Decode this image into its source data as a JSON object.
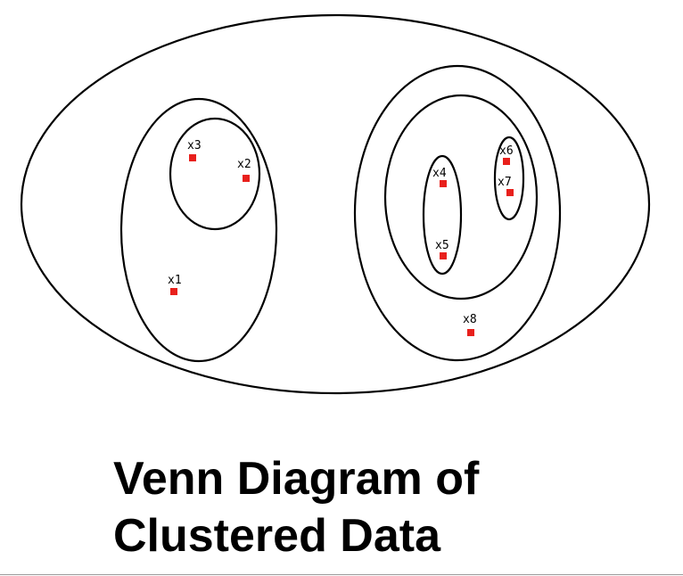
{
  "title": {
    "line1": "Venn Diagram of",
    "line2": "Clustered Data"
  },
  "colors": {
    "outline": "#000000",
    "point": "#e8201c",
    "text": "#000000"
  },
  "clusters": [
    {
      "id": "all",
      "contains": [
        "left-group",
        "right-group"
      ]
    },
    {
      "id": "left-group",
      "contains": [
        "x1",
        "group-x2-x3"
      ]
    },
    {
      "id": "group-x2-x3",
      "contains": [
        "x2",
        "x3"
      ]
    },
    {
      "id": "right-group",
      "contains": [
        "x8",
        "inner-right-group"
      ]
    },
    {
      "id": "inner-right-group",
      "contains": [
        "group-x4-x5",
        "group-x6-x7"
      ]
    },
    {
      "id": "group-x4-x5",
      "contains": [
        "x4",
        "x5"
      ]
    },
    {
      "id": "group-x6-x7",
      "contains": [
        "x6",
        "x7"
      ]
    }
  ],
  "points": [
    {
      "label": "x1"
    },
    {
      "label": "x2"
    },
    {
      "label": "x3"
    },
    {
      "label": "x4"
    },
    {
      "label": "x5"
    },
    {
      "label": "x6"
    },
    {
      "label": "x7"
    },
    {
      "label": "x8"
    }
  ]
}
